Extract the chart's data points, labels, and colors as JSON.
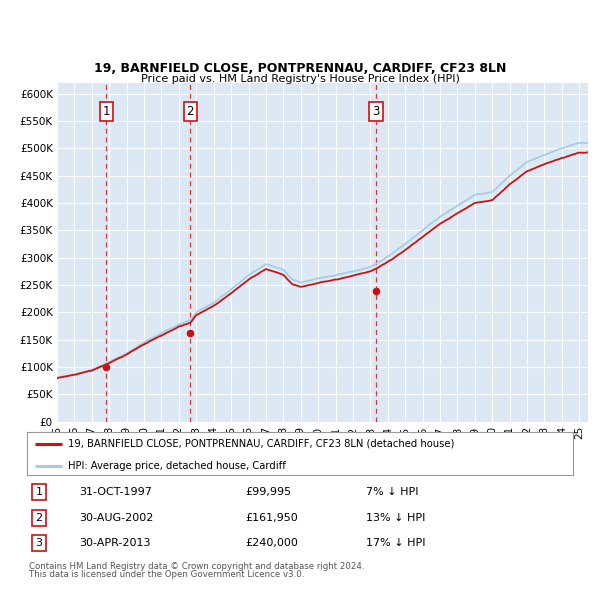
{
  "title1": "19, BARNFIELD CLOSE, PONTPRENNAU, CARDIFF, CF23 8LN",
  "title2": "Price paid vs. HM Land Registry's House Price Index (HPI)",
  "background_color": "#dce9f5",
  "red_line_label": "19, BARNFIELD CLOSE, PONTPRENNAU, CARDIFF, CF23 8LN (detached house)",
  "blue_line_label": "HPI: Average price, detached house, Cardiff",
  "footer1": "Contains HM Land Registry data © Crown copyright and database right 2024.",
  "footer2": "This data is licensed under the Open Government Licence v3.0.",
  "purchases": [
    {
      "num": 1,
      "date": "31-OCT-1997",
      "price": 99995,
      "year": 1997.83,
      "hpi_diff": "7% ↓ HPI"
    },
    {
      "num": 2,
      "date": "30-AUG-2002",
      "price": 161950,
      "year": 2002.66,
      "hpi_diff": "13% ↓ HPI"
    },
    {
      "num": 3,
      "date": "30-APR-2013",
      "price": 240000,
      "year": 2013.33,
      "hpi_diff": "17% ↓ HPI"
    }
  ],
  "ylim": [
    0,
    620000
  ],
  "xlim_start": 1995.0,
  "xlim_end": 2025.5,
  "yticks": [
    0,
    50000,
    100000,
    150000,
    200000,
    250000,
    300000,
    350000,
    400000,
    450000,
    500000,
    550000,
    600000
  ],
  "ytick_labels": [
    "£0",
    "£50K",
    "£100K",
    "£150K",
    "£200K",
    "£250K",
    "£300K",
    "£350K",
    "£400K",
    "£450K",
    "£500K",
    "£550K",
    "£600K"
  ],
  "xticks": [
    1995,
    1996,
    1997,
    1998,
    1999,
    2000,
    2001,
    2002,
    2003,
    2004,
    2005,
    2006,
    2007,
    2008,
    2009,
    2010,
    2011,
    2012,
    2013,
    2014,
    2015,
    2016,
    2017,
    2018,
    2019,
    2020,
    2021,
    2022,
    2023,
    2024,
    2025
  ],
  "fig_width": 6.0,
  "fig_height": 5.9,
  "dpi": 100
}
